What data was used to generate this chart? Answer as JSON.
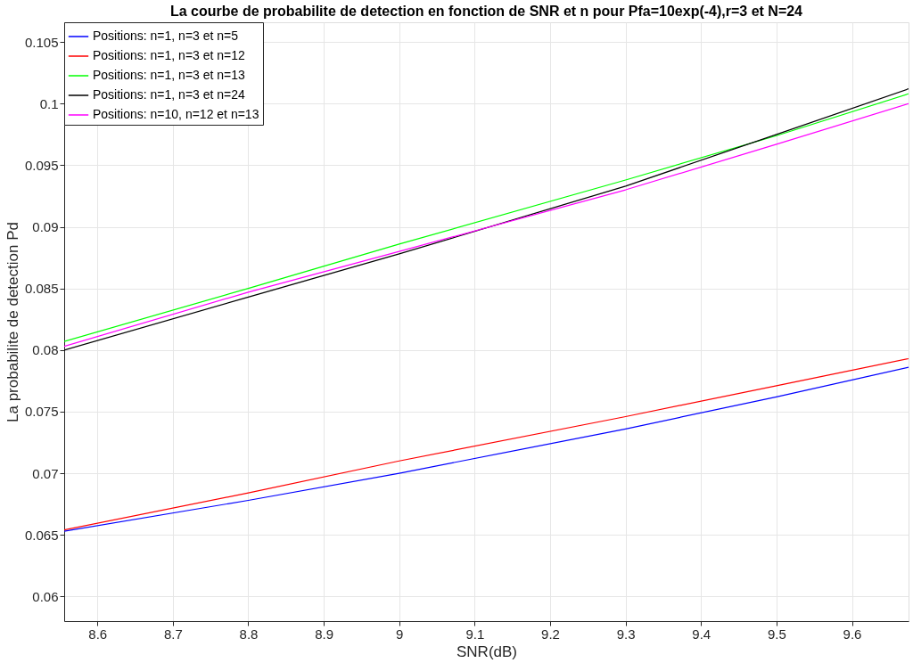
{
  "chart_data": {
    "type": "line",
    "title": "La courbe de probabilite de detection en fonction de SNR et n pour Pfa=10exp(-4),r=3 et N=24",
    "xlabel": "SNR(dB)",
    "ylabel": "La probabilite de detection Pd",
    "x": [
      8.556,
      8.8,
      9.0,
      9.3,
      9.5,
      9.675
    ],
    "series": [
      {
        "name": "Positions: n=1, n=3 et n=5",
        "color": "#0000ff",
        "values": [
          0.0653,
          0.0678,
          0.07,
          0.0736,
          0.0762,
          0.0786
        ]
      },
      {
        "name": "Positions: n=1, n=3 et n=12",
        "color": "#ff0000",
        "values": [
          0.0654,
          0.0684,
          0.071,
          0.0746,
          0.0771,
          0.0793
        ]
      },
      {
        "name": "Positions: n=1, n=3 et n=13",
        "color": "#00ff00",
        "values": [
          0.0807,
          0.085,
          0.0886,
          0.0938,
          0.0974,
          0.1008
        ]
      },
      {
        "name": "Positions: n=1, n=3 et n=24",
        "color": "#000000",
        "values": [
          0.08,
          0.0843,
          0.0878,
          0.0933,
          0.0975,
          0.1012
        ]
      },
      {
        "name": "Positions: n=10, n=12 et n=13",
        "color": "#ff00ff",
        "values": [
          0.0803,
          0.0847,
          0.088,
          0.093,
          0.0967,
          0.1
        ]
      }
    ],
    "xlim": [
      8.556,
      9.675
    ],
    "ylim": [
      0.058,
      0.1066
    ],
    "xticks": [
      8.6,
      8.7,
      8.8,
      8.9,
      9,
      9.1,
      9.2,
      9.3,
      9.4,
      9.5,
      9.6
    ],
    "yticks": [
      0.06,
      0.065,
      0.07,
      0.075,
      0.08,
      0.085,
      0.09,
      0.095,
      0.1,
      0.105
    ],
    "grid": true,
    "legend": "top left",
    "line_style": "solid",
    "marker": "none"
  }
}
